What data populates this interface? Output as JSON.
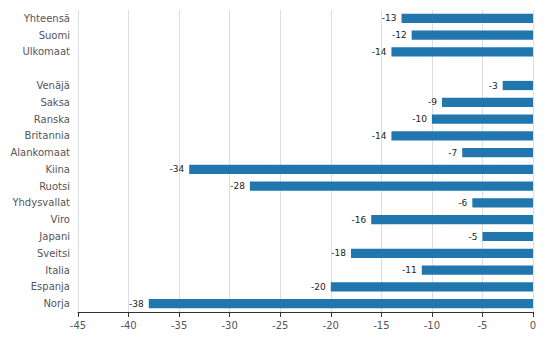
{
  "chart_data": {
    "type": "bar",
    "orientation": "horizontal",
    "categories": [
      "Norja",
      "Espanja",
      "Italia",
      "Sveitsi",
      "Japani",
      "Viro",
      "Yhdysvallat",
      "Ruotsi",
      "Kiina",
      "Alankomaat",
      "Britannia",
      "Ranska",
      "Saksa",
      "Venäjä",
      null,
      "Ulkomaat",
      "Suomi",
      "Yhteensä"
    ],
    "values": [
      -38,
      -20,
      -11,
      -18,
      -5,
      -16,
      -6,
      -28,
      -34,
      -7,
      -14,
      -10,
      -9,
      -3,
      null,
      -14,
      -12,
      -13
    ],
    "color": "#2176ae",
    "xlim": [
      -45,
      0
    ],
    "xticks": [
      -45,
      -40,
      -35,
      -30,
      -25,
      -20,
      -15,
      -10,
      -5,
      0
    ],
    "grid": true,
    "data_labels": true
  }
}
